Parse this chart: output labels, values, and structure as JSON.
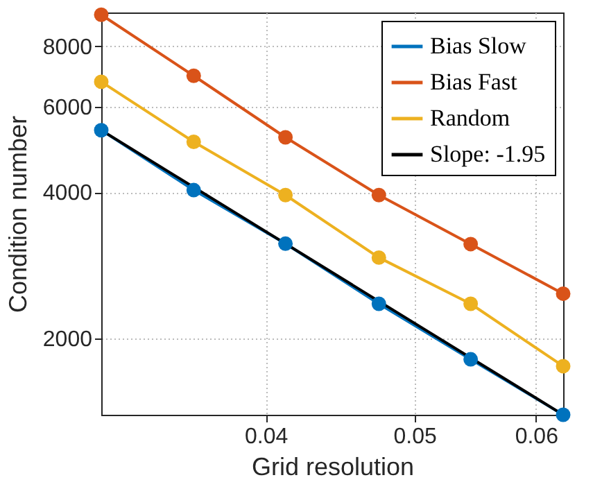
{
  "chart_data": {
    "type": "line",
    "xlabel": "Grid resolution",
    "ylabel": "Condition number",
    "x": [
      0.03125,
      0.0359,
      0.0412,
      0.0474,
      0.0544,
      0.0625
    ],
    "series": [
      {
        "name": "Bias Slow",
        "color": "#0072bd",
        "values": [
          5372,
          4044,
          3136,
          2358,
          1812,
          1393
        ]
      },
      {
        "name": "Bias Fast",
        "color": "#d95319",
        "values": [
          9290,
          6954,
          5194,
          3949,
          3130,
          2474
        ]
      },
      {
        "name": "Random",
        "color": "#edb120",
        "values": [
          6760,
          5084,
          3949,
          2936,
          2358,
          1754
        ]
      },
      {
        "name": "Slope: -1.95",
        "color": "#000000",
        "marker": "none",
        "x": [
          0.03125,
          0.0625
        ],
        "values": [
          5372,
          1393
        ]
      }
    ],
    "log": "xy",
    "xlim": [
      0.03125,
      0.0625
    ],
    "ylim": [
      1393,
      9390
    ],
    "xticks": [
      0.04,
      0.05,
      0.06
    ],
    "yticks": [
      2000,
      4000,
      6000,
      8000
    ],
    "grid": true,
    "legend": "top right",
    "marker": "circle",
    "line_style": "solid"
  }
}
